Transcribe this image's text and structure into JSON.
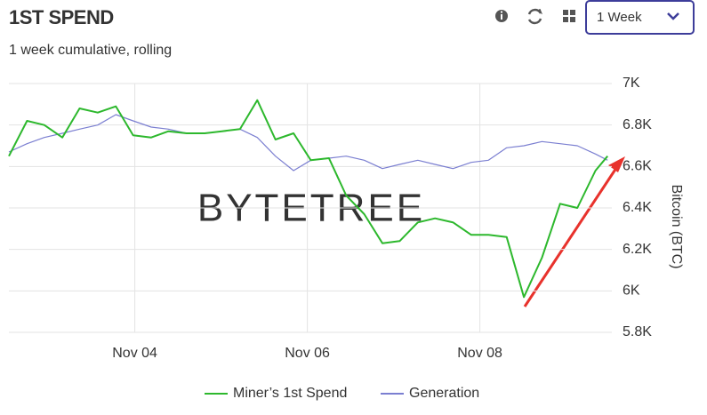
{
  "header": {
    "title": "1ST SPEND",
    "subtitle": "1 week cumulative, rolling",
    "period_select": "1 Week"
  },
  "chart_data": {
    "type": "line",
    "watermark": "BYTETREE",
    "y_axis_label": "Bitcoin (BTC)",
    "x": [
      2.54,
      2.75,
      2.95,
      3.16,
      3.36,
      3.57,
      3.78,
      3.98,
      4.19,
      4.39,
      4.6,
      4.81,
      5.01,
      5.22,
      5.42,
      5.63,
      5.84,
      6.04,
      6.25,
      6.45,
      6.66,
      6.87,
      7.07,
      7.28,
      7.48,
      7.69,
      7.9,
      8.1,
      8.31,
      8.51,
      8.72,
      8.93,
      9.13,
      9.34,
      9.48
    ],
    "series": [
      {
        "name": "Miner’s 1st Spend",
        "color": "#2db82d",
        "values": [
          6650,
          6820,
          6800,
          6740,
          6880,
          6860,
          6890,
          6750,
          6740,
          6770,
          6760,
          6760,
          6770,
          6780,
          6920,
          6730,
          6760,
          6630,
          6640,
          6460,
          6370,
          6230,
          6240,
          6330,
          6350,
          6330,
          6270,
          6270,
          6260,
          5970,
          6160,
          6420,
          6400,
          6580,
          6650
        ]
      },
      {
        "name": "Generation",
        "color": "#7b7fd1",
        "values": [
          6670,
          6710,
          6740,
          6760,
          6780,
          6800,
          6850,
          6820,
          6790,
          6780,
          6760,
          6760,
          6770,
          6780,
          6740,
          6650,
          6580,
          6630,
          6640,
          6650,
          6630,
          6590,
          6610,
          6630,
          6610,
          6590,
          6620,
          6630,
          6690,
          6700,
          6720,
          6710,
          6700,
          6660,
          6630
        ]
      }
    ],
    "xlim": [
      2.54,
      9.53
    ],
    "xticks": [
      {
        "value": 4,
        "label": "Nov 04"
      },
      {
        "value": 6,
        "label": "Nov 06"
      },
      {
        "value": 8,
        "label": "Nov 08"
      }
    ],
    "ylim": [
      5800,
      7000
    ],
    "yticks": [
      {
        "value": 5800,
        "label": "5.8K"
      },
      {
        "value": 6000,
        "label": "6K"
      },
      {
        "value": 6200,
        "label": "6.2K"
      },
      {
        "value": 6400,
        "label": "6.4K"
      },
      {
        "value": 6600,
        "label": "6.6K"
      },
      {
        "value": 6800,
        "label": "6.8K"
      },
      {
        "value": 7000,
        "label": "7K"
      }
    ],
    "grid": true,
    "legend": "bottom"
  }
}
